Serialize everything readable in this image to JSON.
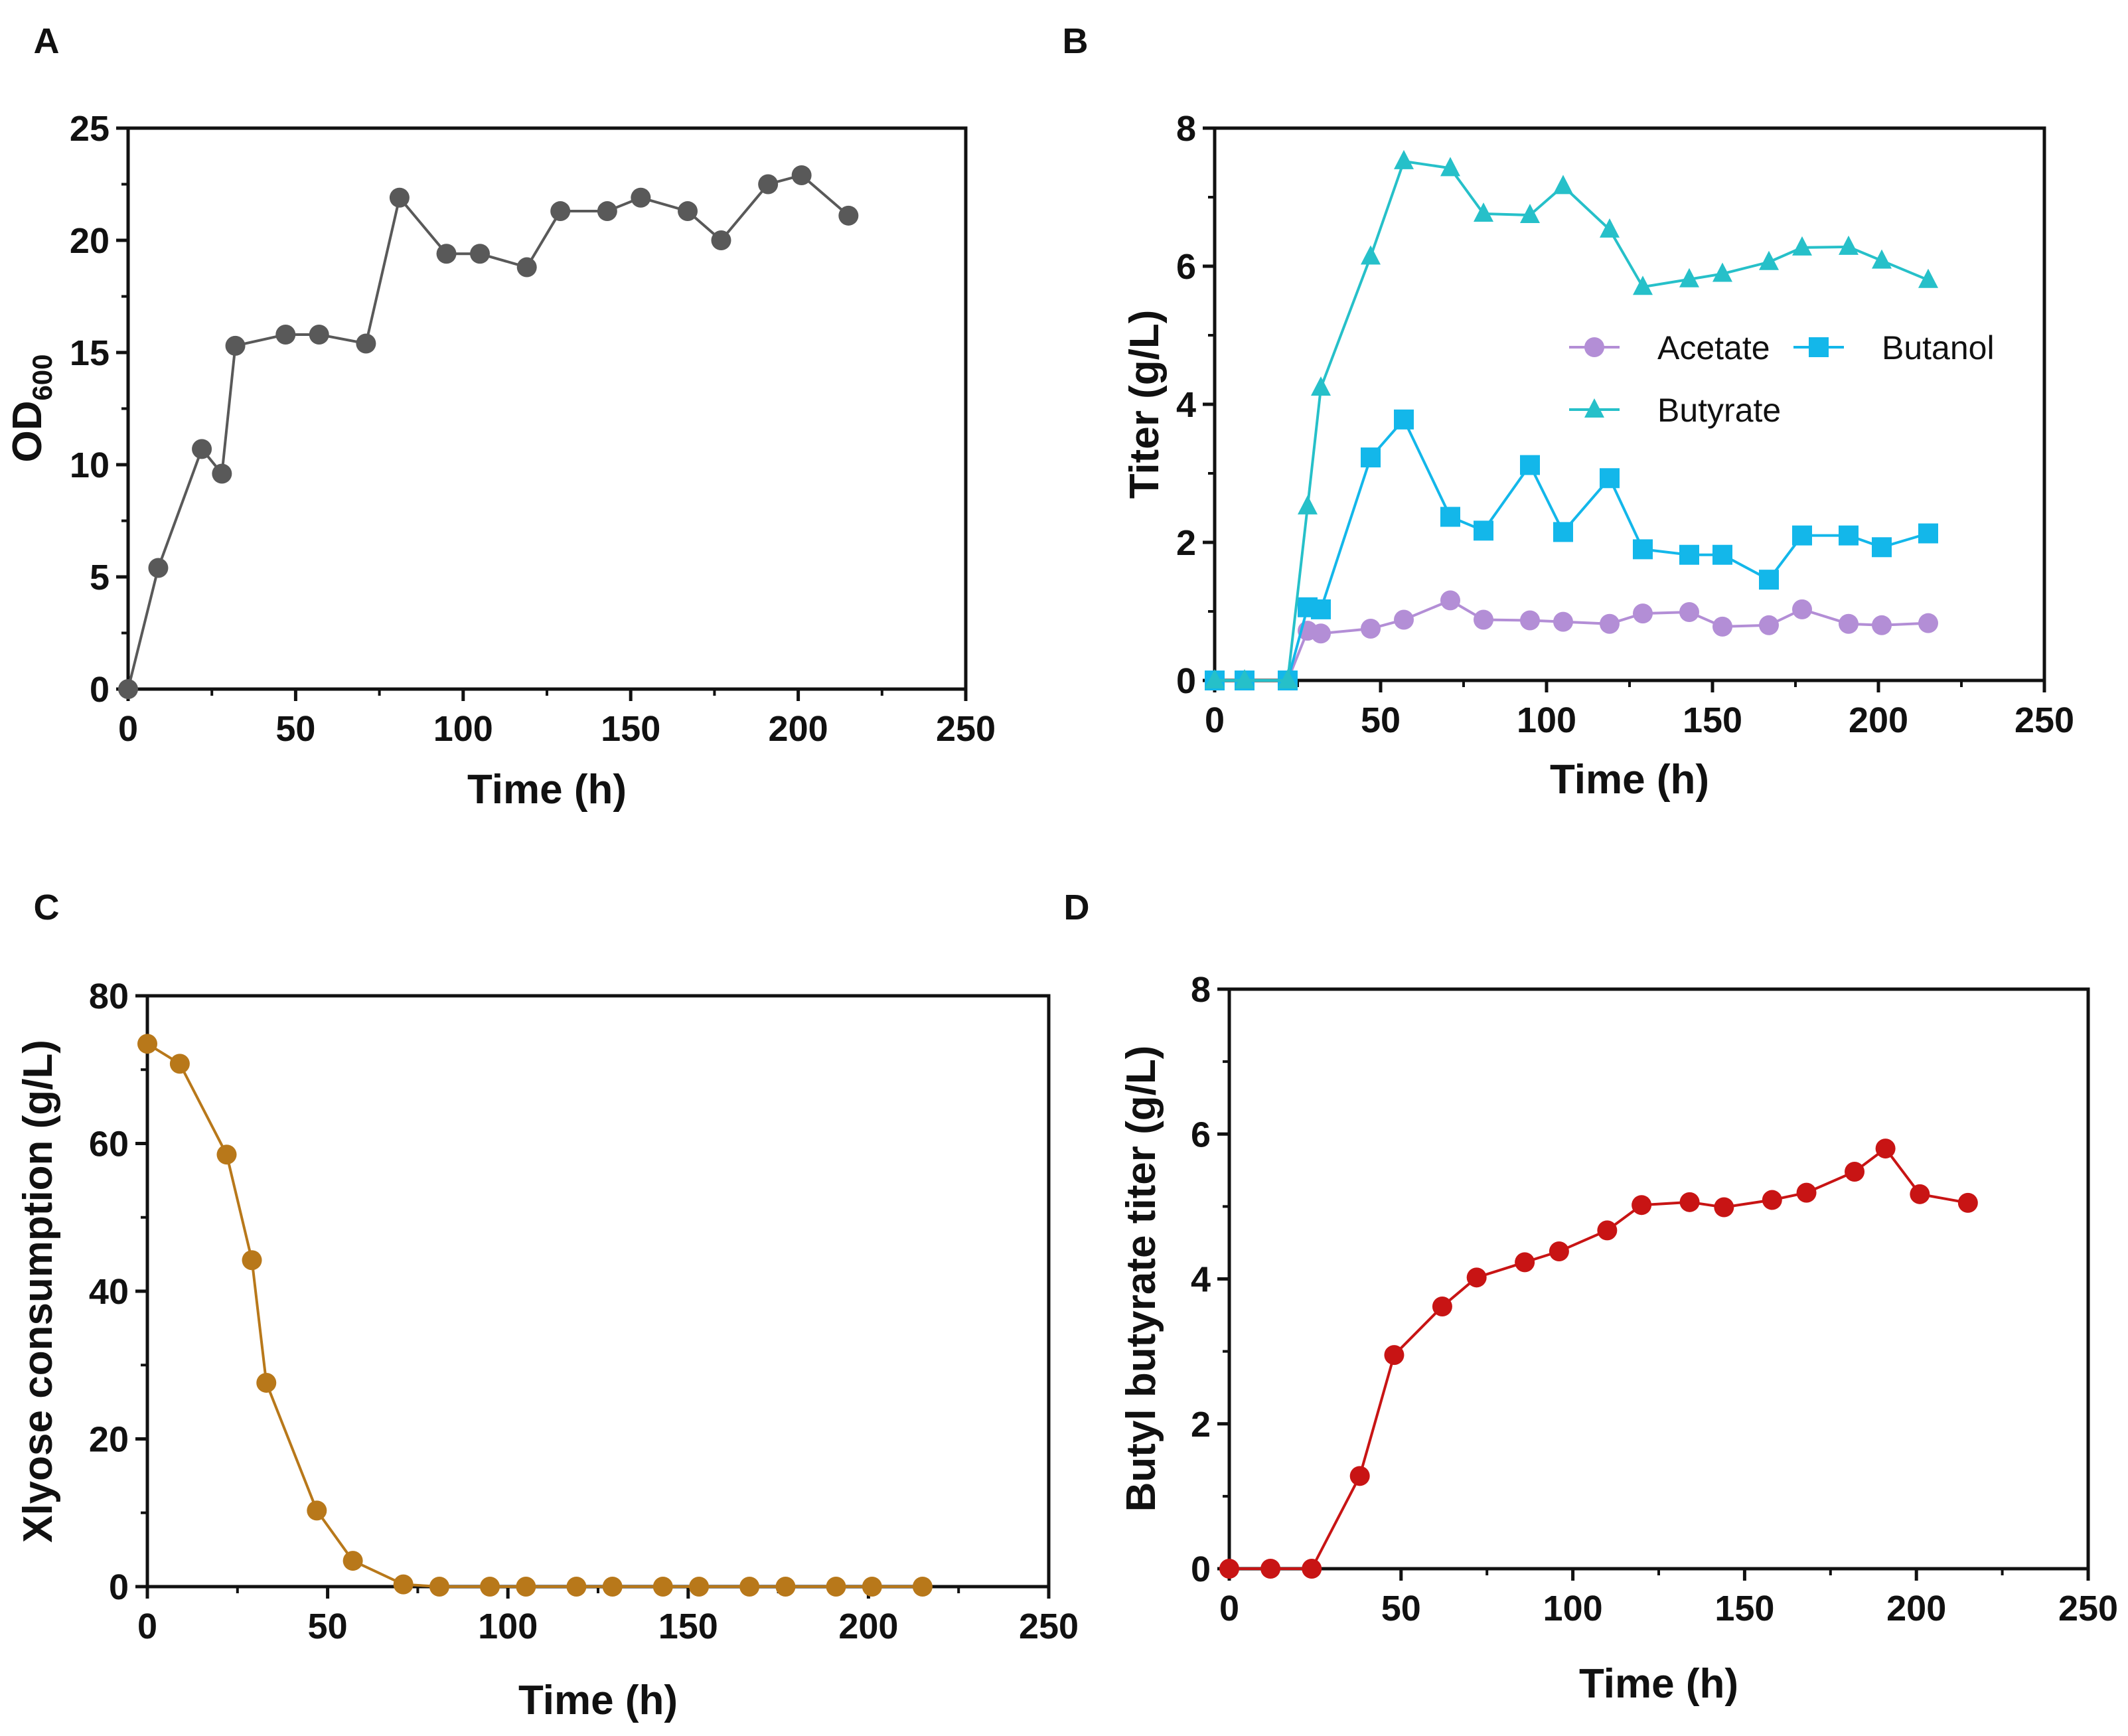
{
  "chart_data": [
    {
      "id": "A",
      "panel_label": "A",
      "type": "line",
      "xlabel": "Time (h)",
      "ylabel": "OD",
      "ylabel_sub": "600",
      "xlim": [
        0,
        250
      ],
      "ylim": [
        0,
        25
      ],
      "xticks": [
        0,
        50,
        100,
        150,
        200,
        250
      ],
      "yticks": [
        0,
        5,
        10,
        15,
        20,
        25
      ],
      "series": [
        {
          "name": "OD600",
          "color": "#595959",
          "marker": "circle",
          "x": [
            0,
            9,
            22,
            28,
            32,
            47,
            57,
            71,
            81,
            95,
            105,
            119,
            129,
            143,
            153,
            167,
            177,
            191,
            201,
            215
          ],
          "y": [
            0,
            5.4,
            10.7,
            9.6,
            15.3,
            15.8,
            15.8,
            15.4,
            21.9,
            19.4,
            19.4,
            18.8,
            21.3,
            21.3,
            21.9,
            21.3,
            20.0,
            22.5,
            22.9,
            21.1
          ]
        }
      ]
    },
    {
      "id": "B",
      "panel_label": "B",
      "type": "line",
      "xlabel": "Time (h)",
      "ylabel": "Titer (g/L)",
      "xlim": [
        0,
        250
      ],
      "ylim": [
        0,
        8
      ],
      "xticks": [
        0,
        50,
        100,
        150,
        200,
        250
      ],
      "yticks": [
        0,
        2,
        4,
        6,
        8
      ],
      "legend_position": "right-center",
      "series": [
        {
          "name": "Acetate",
          "color": "#b38ed6",
          "marker": "circle",
          "x": [
            0,
            9,
            22,
            28,
            32,
            47,
            57,
            71,
            81,
            95,
            105,
            119,
            129,
            143,
            153,
            167,
            177,
            191,
            201,
            215
          ],
          "y": [
            0,
            0,
            0,
            0.72,
            0.68,
            0.75,
            0.88,
            1.16,
            0.88,
            0.87,
            0.85,
            0.82,
            0.97,
            0.99,
            0.78,
            0.8,
            1.03,
            0.82,
            0.8,
            0.83
          ]
        },
        {
          "name": "Butanol",
          "color": "#13b7ea",
          "marker": "square",
          "x": [
            0,
            9,
            22,
            28,
            32,
            47,
            57,
            71,
            81,
            95,
            105,
            119,
            129,
            143,
            153,
            167,
            177,
            191,
            201,
            215
          ],
          "y": [
            0,
            0,
            0,
            1.06,
            1.03,
            3.23,
            3.78,
            2.37,
            2.17,
            3.12,
            2.15,
            2.93,
            1.9,
            1.82,
            1.82,
            1.46,
            2.1,
            2.1,
            1.93,
            2.13
          ]
        },
        {
          "name": "Butyrate",
          "color": "#26c0c9",
          "marker": "triangle",
          "x": [
            0,
            9,
            22,
            28,
            32,
            47,
            57,
            71,
            81,
            95,
            105,
            119,
            129,
            143,
            153,
            167,
            177,
            191,
            201,
            215
          ],
          "y": [
            0,
            0,
            0,
            2.52,
            4.24,
            6.14,
            7.52,
            7.42,
            6.76,
            6.74,
            7.16,
            6.53,
            5.7,
            5.81,
            5.89,
            6.06,
            6.27,
            6.28,
            6.08,
            5.8
          ]
        }
      ]
    },
    {
      "id": "C",
      "panel_label": "C",
      "type": "line",
      "xlabel": "Time (h)",
      "ylabel": "Xlyose consumption (g/L)",
      "xlim": [
        0,
        250
      ],
      "ylim": [
        0,
        80
      ],
      "xticks": [
        0,
        50,
        100,
        150,
        200,
        250
      ],
      "yticks": [
        0,
        20,
        40,
        60,
        80
      ],
      "series": [
        {
          "name": "Xylose",
          "color": "#b8781a",
          "marker": "circle",
          "x": [
            0,
            9,
            22,
            29,
            33,
            47,
            57,
            71,
            81,
            95,
            105,
            119,
            129,
            143,
            153,
            167,
            177,
            191,
            201,
            215
          ],
          "y": [
            73.5,
            70.8,
            58.5,
            44.2,
            27.6,
            10.3,
            3.5,
            0.3,
            0,
            0,
            0,
            0,
            0,
            0,
            0,
            0,
            0,
            0,
            0,
            0
          ]
        }
      ]
    },
    {
      "id": "D",
      "panel_label": "D",
      "type": "line",
      "xlabel": "Time (h)",
      "ylabel": "Butyl butyrate titer (g/L)",
      "xlim": [
        0,
        250
      ],
      "ylim": [
        0,
        8
      ],
      "xticks": [
        0,
        50,
        100,
        150,
        200,
        250
      ],
      "yticks": [
        0,
        2,
        4,
        6,
        8
      ],
      "series": [
        {
          "name": "Butyl butyrate",
          "color": "#c81414",
          "marker": "circle",
          "x": [
            0,
            12,
            24,
            38,
            48,
            62,
            72,
            86,
            96,
            110,
            120,
            134,
            144,
            158,
            168,
            182,
            191,
            201,
            215
          ],
          "y": [
            0,
            0,
            0,
            1.28,
            2.95,
            3.62,
            4.02,
            4.23,
            4.38,
            4.67,
            5.02,
            5.06,
            4.99,
            5.09,
            5.19,
            5.48,
            5.8,
            5.17,
            5.05
          ]
        }
      ]
    }
  ]
}
